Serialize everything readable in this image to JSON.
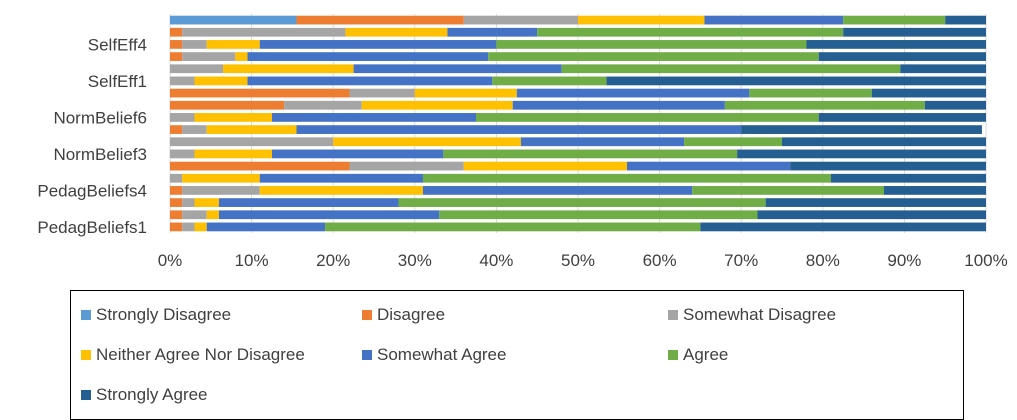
{
  "chart_data": {
    "type": "bar",
    "orientation": "horizontal",
    "stacked": "percent",
    "categories": [
      "PedagBeliefs1",
      "",
      "",
      "PedagBeliefs4",
      "",
      "",
      "NormBelief3",
      "",
      "",
      "NormBelief6",
      "",
      "",
      "SelfEff1",
      "",
      "",
      "SelfEff4",
      "",
      ""
    ],
    "xlim": [
      0,
      100
    ],
    "x_ticks": [
      "0%",
      "10%",
      "20%",
      "30%",
      "40%",
      "50%",
      "60%",
      "70%",
      "80%",
      "90%",
      "100%"
    ],
    "grid": true,
    "legend_position": "bottom",
    "series": [
      {
        "name": "Strongly Disagree",
        "color": "#5B9BD5",
        "values": [
          0,
          0,
          0,
          0,
          0,
          0,
          0,
          0,
          0,
          0,
          0,
          0,
          0,
          0,
          0,
          0,
          0,
          15.5
        ]
      },
      {
        "name": "Disagree",
        "color": "#ED7D31",
        "values": [
          1.5,
          1.5,
          1.5,
          1.5,
          0,
          22,
          0,
          0,
          1.5,
          0,
          14,
          22,
          0,
          0,
          1.5,
          1.5,
          1.5,
          20.5
        ]
      },
      {
        "name": "Somewhat Disagree",
        "color": "#A5A5A5",
        "values": [
          1.5,
          3,
          1.5,
          9.5,
          1.5,
          14,
          3,
          20,
          3,
          3,
          9.5,
          8,
          3,
          6.5,
          6.5,
          3,
          20,
          14
        ]
      },
      {
        "name": "Neither Agree Nor Disagree",
        "color": "#FFC000",
        "values": [
          1.5,
          1.5,
          3,
          20,
          9.5,
          20,
          9.5,
          23,
          11,
          9.5,
          18.5,
          12.5,
          6.5,
          16,
          1.5,
          6.5,
          12.5,
          15.5
        ]
      },
      {
        "name": "Somewhat Agree",
        "color": "#4472C4",
        "values": [
          14.5,
          27,
          22,
          33,
          20,
          20,
          21,
          20,
          54.5,
          25,
          26,
          28.5,
          30,
          25.5,
          29.5,
          29,
          11,
          17
        ]
      },
      {
        "name": "Agree",
        "color": "#70AD47",
        "values": [
          46,
          39,
          45,
          23.5,
          50,
          0,
          36,
          12,
          0,
          42,
          24.5,
          15,
          14,
          41.5,
          40.5,
          38,
          37.5,
          12.5
        ]
      },
      {
        "name": "Strongly Agree",
        "color": "#255E91",
        "values": [
          35,
          28,
          27,
          12.5,
          19,
          24,
          30.5,
          25,
          29.5,
          20.5,
          7.5,
          14,
          46.5,
          10.5,
          20.5,
          22,
          17.5,
          5
        ]
      }
    ]
  }
}
